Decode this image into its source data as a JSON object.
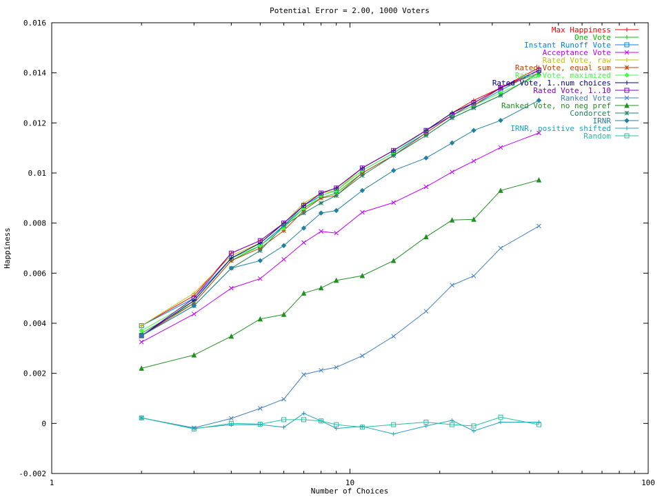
{
  "chart_data": {
    "type": "line",
    "title": "Potential Error = 2.00, 1000 Voters",
    "xlabel": "Number of Choices",
    "ylabel": "Happiness",
    "xscale": "log",
    "xlim": [
      1,
      100
    ],
    "ylim": [
      -0.002,
      0.016
    ],
    "x_ticks": [
      {
        "value": 1,
        "label": "1"
      },
      {
        "value": 10,
        "label": "10"
      },
      {
        "value": 100,
        "label": "100"
      }
    ],
    "y_ticks": [
      {
        "value": -0.002,
        "label": "-0.002"
      },
      {
        "value": 0,
        "label": "0"
      },
      {
        "value": 0.002,
        "label": "0.002"
      },
      {
        "value": 0.004,
        "label": "0.004"
      },
      {
        "value": 0.006,
        "label": "0.006"
      },
      {
        "value": 0.008,
        "label": "0.008"
      },
      {
        "value": 0.01,
        "label": "0.01"
      },
      {
        "value": 0.012,
        "label": "0.012"
      },
      {
        "value": 0.014,
        "label": "0.014"
      },
      {
        "value": 0.016,
        "label": "0.016"
      }
    ],
    "grid": false,
    "legend_position": "top-right",
    "x": [
      2,
      3,
      4,
      5,
      6,
      7,
      8,
      9,
      11,
      14,
      18,
      22,
      26,
      32,
      43
    ],
    "series": [
      {
        "name": "Max Happiness",
        "color": "#ff0000",
        "marker": "plus",
        "values": [
          0.0039,
          0.0051,
          0.0068,
          0.0073,
          0.008,
          0.0087,
          0.0092,
          0.0094,
          0.0102,
          0.0109,
          0.0117,
          0.0124,
          0.0129,
          0.0134,
          0.0142
        ]
      },
      {
        "name": "One Vote",
        "color": "#00c000",
        "marker": "cross",
        "values": [
          0.0036,
          0.0048,
          0.0065,
          0.0071,
          0.0079,
          0.0086,
          0.009,
          0.0092,
          0.01,
          0.0107,
          0.0115,
          0.0122,
          0.0126,
          0.0131,
          0.014
        ]
      },
      {
        "name": "Instant Runoff Vote",
        "color": "#0080ff",
        "marker": "square",
        "values": [
          0.0039,
          0.005,
          0.0066,
          0.0071,
          0.0079,
          0.0087,
          0.0091,
          0.0093,
          0.0101,
          0.0108,
          0.0116,
          0.0123,
          0.0127,
          0.0133,
          0.0141
        ]
      },
      {
        "name": "Acceptance Vote",
        "color": "#c000ff",
        "marker": "x",
        "values": [
          0.00325,
          0.00437,
          0.0054,
          0.00578,
          0.00655,
          0.00722,
          0.00767,
          0.0076,
          0.00843,
          0.00882,
          0.00945,
          0.01004,
          0.01048,
          0.01102,
          0.0116
        ]
      },
      {
        "name": "Rated Vote, raw",
        "color": "#c0c000",
        "marker": "plus",
        "values": [
          0.0039,
          0.0052,
          0.0067,
          0.0072,
          0.008,
          0.0088,
          0.0092,
          0.0093,
          0.0102,
          0.0109,
          0.0117,
          0.0124,
          0.0128,
          0.0134,
          0.0141
        ]
      },
      {
        "name": "Rated Vote, equal sum",
        "color": "#c04000",
        "marker": "star",
        "values": [
          0.0035,
          0.0048,
          0.0065,
          0.007,
          0.0077,
          0.0085,
          0.009,
          0.0091,
          0.01,
          0.0107,
          0.0116,
          0.0123,
          0.0127,
          0.0134,
          0.014
        ]
      },
      {
        "name": "Rated Vote, maximized",
        "color": "#40ff40",
        "marker": "diamond",
        "values": [
          0.0037,
          0.0049,
          0.0066,
          0.0071,
          0.0078,
          0.0086,
          0.0091,
          0.0093,
          0.0101,
          0.0108,
          0.0117,
          0.0123,
          0.0127,
          0.0132,
          0.0139
        ]
      },
      {
        "name": "Rated Vote, 1..num choices",
        "color": "#000080",
        "marker": "plus",
        "values": [
          0.0035,
          0.0049,
          0.0066,
          0.0072,
          0.008,
          0.0087,
          0.0092,
          0.0094,
          0.0102,
          0.0109,
          0.0117,
          0.0124,
          0.0128,
          0.0134,
          0.0141
        ]
      },
      {
        "name": "Rated Vote, 1..10",
        "color": "#8000c0",
        "marker": "square",
        "values": [
          0.0035,
          0.005,
          0.0068,
          0.0073,
          0.008,
          0.0087,
          0.0092,
          0.0094,
          0.0102,
          0.0109,
          0.0117,
          0.0123,
          0.0128,
          0.0134,
          0.0141
        ]
      },
      {
        "name": "Ranked Vote",
        "color": "#4080c0",
        "marker": "x",
        "values": [
          0.00022,
          -0.00018,
          0.0002,
          0.0006,
          0.00097,
          0.00195,
          0.00212,
          0.00224,
          0.0027,
          0.00348,
          0.00448,
          0.00552,
          0.00589,
          0.007,
          0.00788
        ]
      },
      {
        "name": "Ranked Vote, no neg pref",
        "color": "#209020",
        "marker": "triangle",
        "values": [
          0.0022,
          0.00273,
          0.00348,
          0.00417,
          0.00435,
          0.0052,
          0.00541,
          0.00571,
          0.0059,
          0.0065,
          0.00745,
          0.00812,
          0.00815,
          0.0093,
          0.00972
        ]
      },
      {
        "name": "Condorcet",
        "color": "#208060",
        "marker": "star",
        "values": [
          0.0035,
          0.0047,
          0.0062,
          0.0069,
          0.0079,
          0.0084,
          0.0088,
          0.0091,
          0.0099,
          0.0107,
          0.0115,
          0.0122,
          0.0126,
          0.0131,
          0.014
        ]
      },
      {
        "name": "IRNR",
        "color": "#2080a0",
        "marker": "diamond",
        "values": [
          0.0035,
          0.0047,
          0.0062,
          0.0065,
          0.0071,
          0.0078,
          0.0084,
          0.0085,
          0.0093,
          0.0101,
          0.0106,
          0.0112,
          0.0117,
          0.0121,
          0.0129
        ]
      },
      {
        "name": "IRNR, positive shifted",
        "color": "#20a0c0",
        "marker": "plus",
        "values": [
          0.00022,
          -0.0002,
          -5e-05,
          -5e-05,
          -0.00015,
          0.0004,
          0.0001,
          -0.0002,
          -0.00012,
          -0.00042,
          -0.0001,
          0.00012,
          -0.0003,
          5e-05,
          5e-05
        ]
      },
      {
        "name": "Random",
        "color": "#20c0a0",
        "marker": "square",
        "values": [
          0.00022,
          -0.00022,
          0.0,
          -3e-05,
          0.00015,
          0.00015,
          0.0001,
          -5e-05,
          -0.00015,
          -5e-05,
          5e-05,
          -5e-05,
          -0.0001,
          0.00025,
          -5e-05
        ]
      }
    ]
  }
}
